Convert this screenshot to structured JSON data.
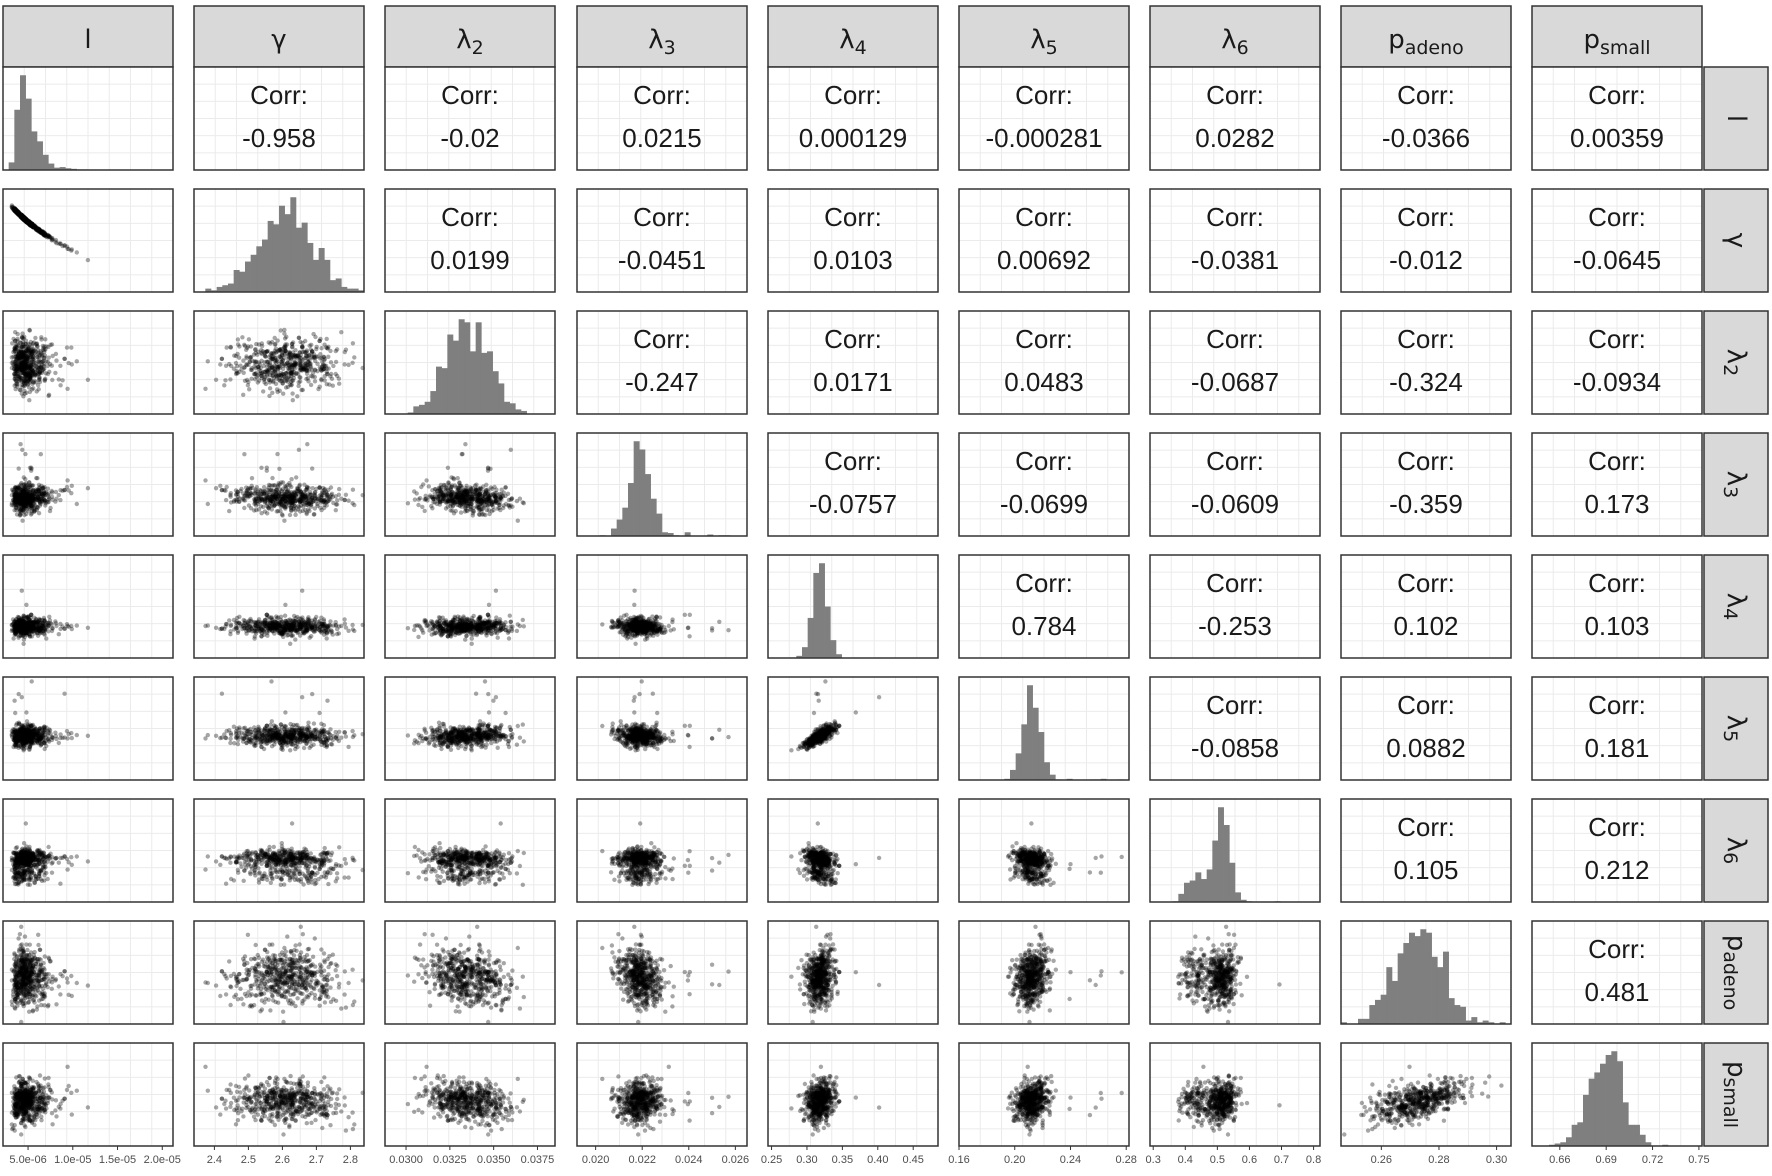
{
  "colors": {
    "strip": "#d9d9d9",
    "grid": "#ebebeb",
    "frame": "#333333",
    "point": "#000000",
    "bar": "#7f7f7f",
    "text": "#1a1a1a"
  },
  "chart_data": {
    "type": "scatter-matrix",
    "variables": [
      {
        "key": "l",
        "label": "l",
        "base": "l",
        "sub": ""
      },
      {
        "key": "gamma",
        "label": "γ",
        "base": "γ",
        "sub": ""
      },
      {
        "key": "lambda2",
        "label": "λ2",
        "base": "λ",
        "sub": "2"
      },
      {
        "key": "lambda3",
        "label": "λ3",
        "base": "λ",
        "sub": "3"
      },
      {
        "key": "lambda4",
        "label": "λ4",
        "base": "λ",
        "sub": "4"
      },
      {
        "key": "lambda5",
        "label": "λ5",
        "base": "λ",
        "sub": "5"
      },
      {
        "key": "lambda6",
        "label": "λ6",
        "base": "λ",
        "sub": "6"
      },
      {
        "key": "padeno",
        "label": "padeno",
        "base": "p",
        "sub": "adeno"
      },
      {
        "key": "psmall",
        "label": "psmall",
        "base": "p",
        "sub": "small"
      }
    ],
    "corr_label": "Corr:",
    "correlations": [
      [
        "",
        "-0.958",
        "-0.02",
        "0.0215",
        "0.000129",
        "-0.000281",
        "0.0282",
        "-0.0366",
        "0.00359"
      ],
      [
        "",
        "",
        "0.0199",
        "-0.0451",
        "0.0103",
        "0.00692",
        "-0.0381",
        "-0.012",
        "-0.0645"
      ],
      [
        "",
        "",
        "",
        "-0.247",
        "0.0171",
        "0.0483",
        "-0.0687",
        "-0.324",
        "-0.0934"
      ],
      [
        "",
        "",
        "",
        "",
        "-0.0757",
        "-0.0699",
        "-0.0609",
        "-0.359",
        "0.173"
      ],
      [
        "",
        "",
        "",
        "",
        "",
        "0.784",
        "-0.253",
        "0.102",
        "0.103"
      ],
      [
        "",
        "",
        "",
        "",
        "",
        "",
        "-0.0858",
        "0.0882",
        "0.181"
      ],
      [
        "",
        "",
        "",
        "",
        "",
        "",
        "",
        "0.105",
        "0.212"
      ],
      [
        "",
        "",
        "",
        "",
        "",
        "",
        "",
        "",
        "0.481"
      ]
    ],
    "x_ticks": [
      {
        "labels": [
          "5.0e-06",
          "1.0e-05",
          "1.5e-05",
          "2.0e-05"
        ],
        "values": [
          5e-06,
          1e-05,
          1.5e-05,
          2e-05
        ],
        "range": [
          2.2e-06,
          2.12e-05
        ]
      },
      {
        "labels": [
          "2.4",
          "2.5",
          "2.6",
          "2.7",
          "2.8"
        ],
        "values": [
          2.4,
          2.5,
          2.6,
          2.7,
          2.8
        ],
        "range": [
          2.34,
          2.84
        ]
      },
      {
        "labels": [
          "0.0300",
          "0.0325",
          "0.0350",
          "0.0375"
        ],
        "values": [
          0.03,
          0.0325,
          0.035,
          0.0375
        ],
        "range": [
          0.0288,
          0.0385
        ]
      },
      {
        "labels": [
          "0.020",
          "0.022",
          "0.024",
          "0.026"
        ],
        "values": [
          0.02,
          0.022,
          0.024,
          0.026
        ],
        "range": [
          0.0192,
          0.0265
        ]
      },
      {
        "labels": [
          "0.25",
          "0.30",
          "0.35",
          "0.40",
          "0.45"
        ],
        "values": [
          0.25,
          0.3,
          0.35,
          0.4,
          0.45
        ],
        "range": [
          0.245,
          0.485
        ]
      },
      {
        "labels": [
          "0.16",
          "0.20",
          "0.24",
          "0.28"
        ],
        "values": [
          0.16,
          0.2,
          0.24,
          0.28
        ],
        "range": [
          0.16,
          0.282
        ]
      },
      {
        "labels": [
          "0.3",
          "0.4",
          "0.5",
          "0.6",
          "0.7",
          "0.8"
        ],
        "values": [
          0.3,
          0.4,
          0.5,
          0.6,
          0.7,
          0.8
        ],
        "range": [
          0.29,
          0.82
        ]
      },
      {
        "labels": [
          "0.26",
          "0.28",
          "0.30"
        ],
        "values": [
          0.26,
          0.28,
          0.3
        ],
        "range": [
          0.246,
          0.305
        ]
      },
      {
        "labels": [
          "0.66",
          "0.69",
          "0.72",
          "0.75"
        ],
        "values": [
          0.66,
          0.69,
          0.72,
          0.75
        ],
        "range": [
          0.642,
          0.752
        ]
      }
    ],
    "distributions": [
      {
        "center": 4.78e-06,
        "spread": 1.8e-06,
        "shape": "right-skew",
        "min": 2.5e-06
      },
      {
        "center": 2.61,
        "spread": 0.08,
        "shape": "normal"
      },
      {
        "center": 0.0335,
        "spread": 0.0012,
        "shape": "normal"
      },
      {
        "center": 0.0219,
        "spread": 0.00045,
        "shape": "normal"
      },
      {
        "center": 0.318,
        "spread": 0.01,
        "shape": "normal"
      },
      {
        "center": 0.212,
        "spread": 0.006,
        "shape": "normal"
      },
      {
        "center": 0.5,
        "spread": 0.03,
        "shape": "bimodal"
      },
      {
        "center": 0.273,
        "spread": 0.0085,
        "shape": "multimodal"
      },
      {
        "center": 0.69,
        "spread": 0.011,
        "shape": "normal"
      }
    ]
  }
}
